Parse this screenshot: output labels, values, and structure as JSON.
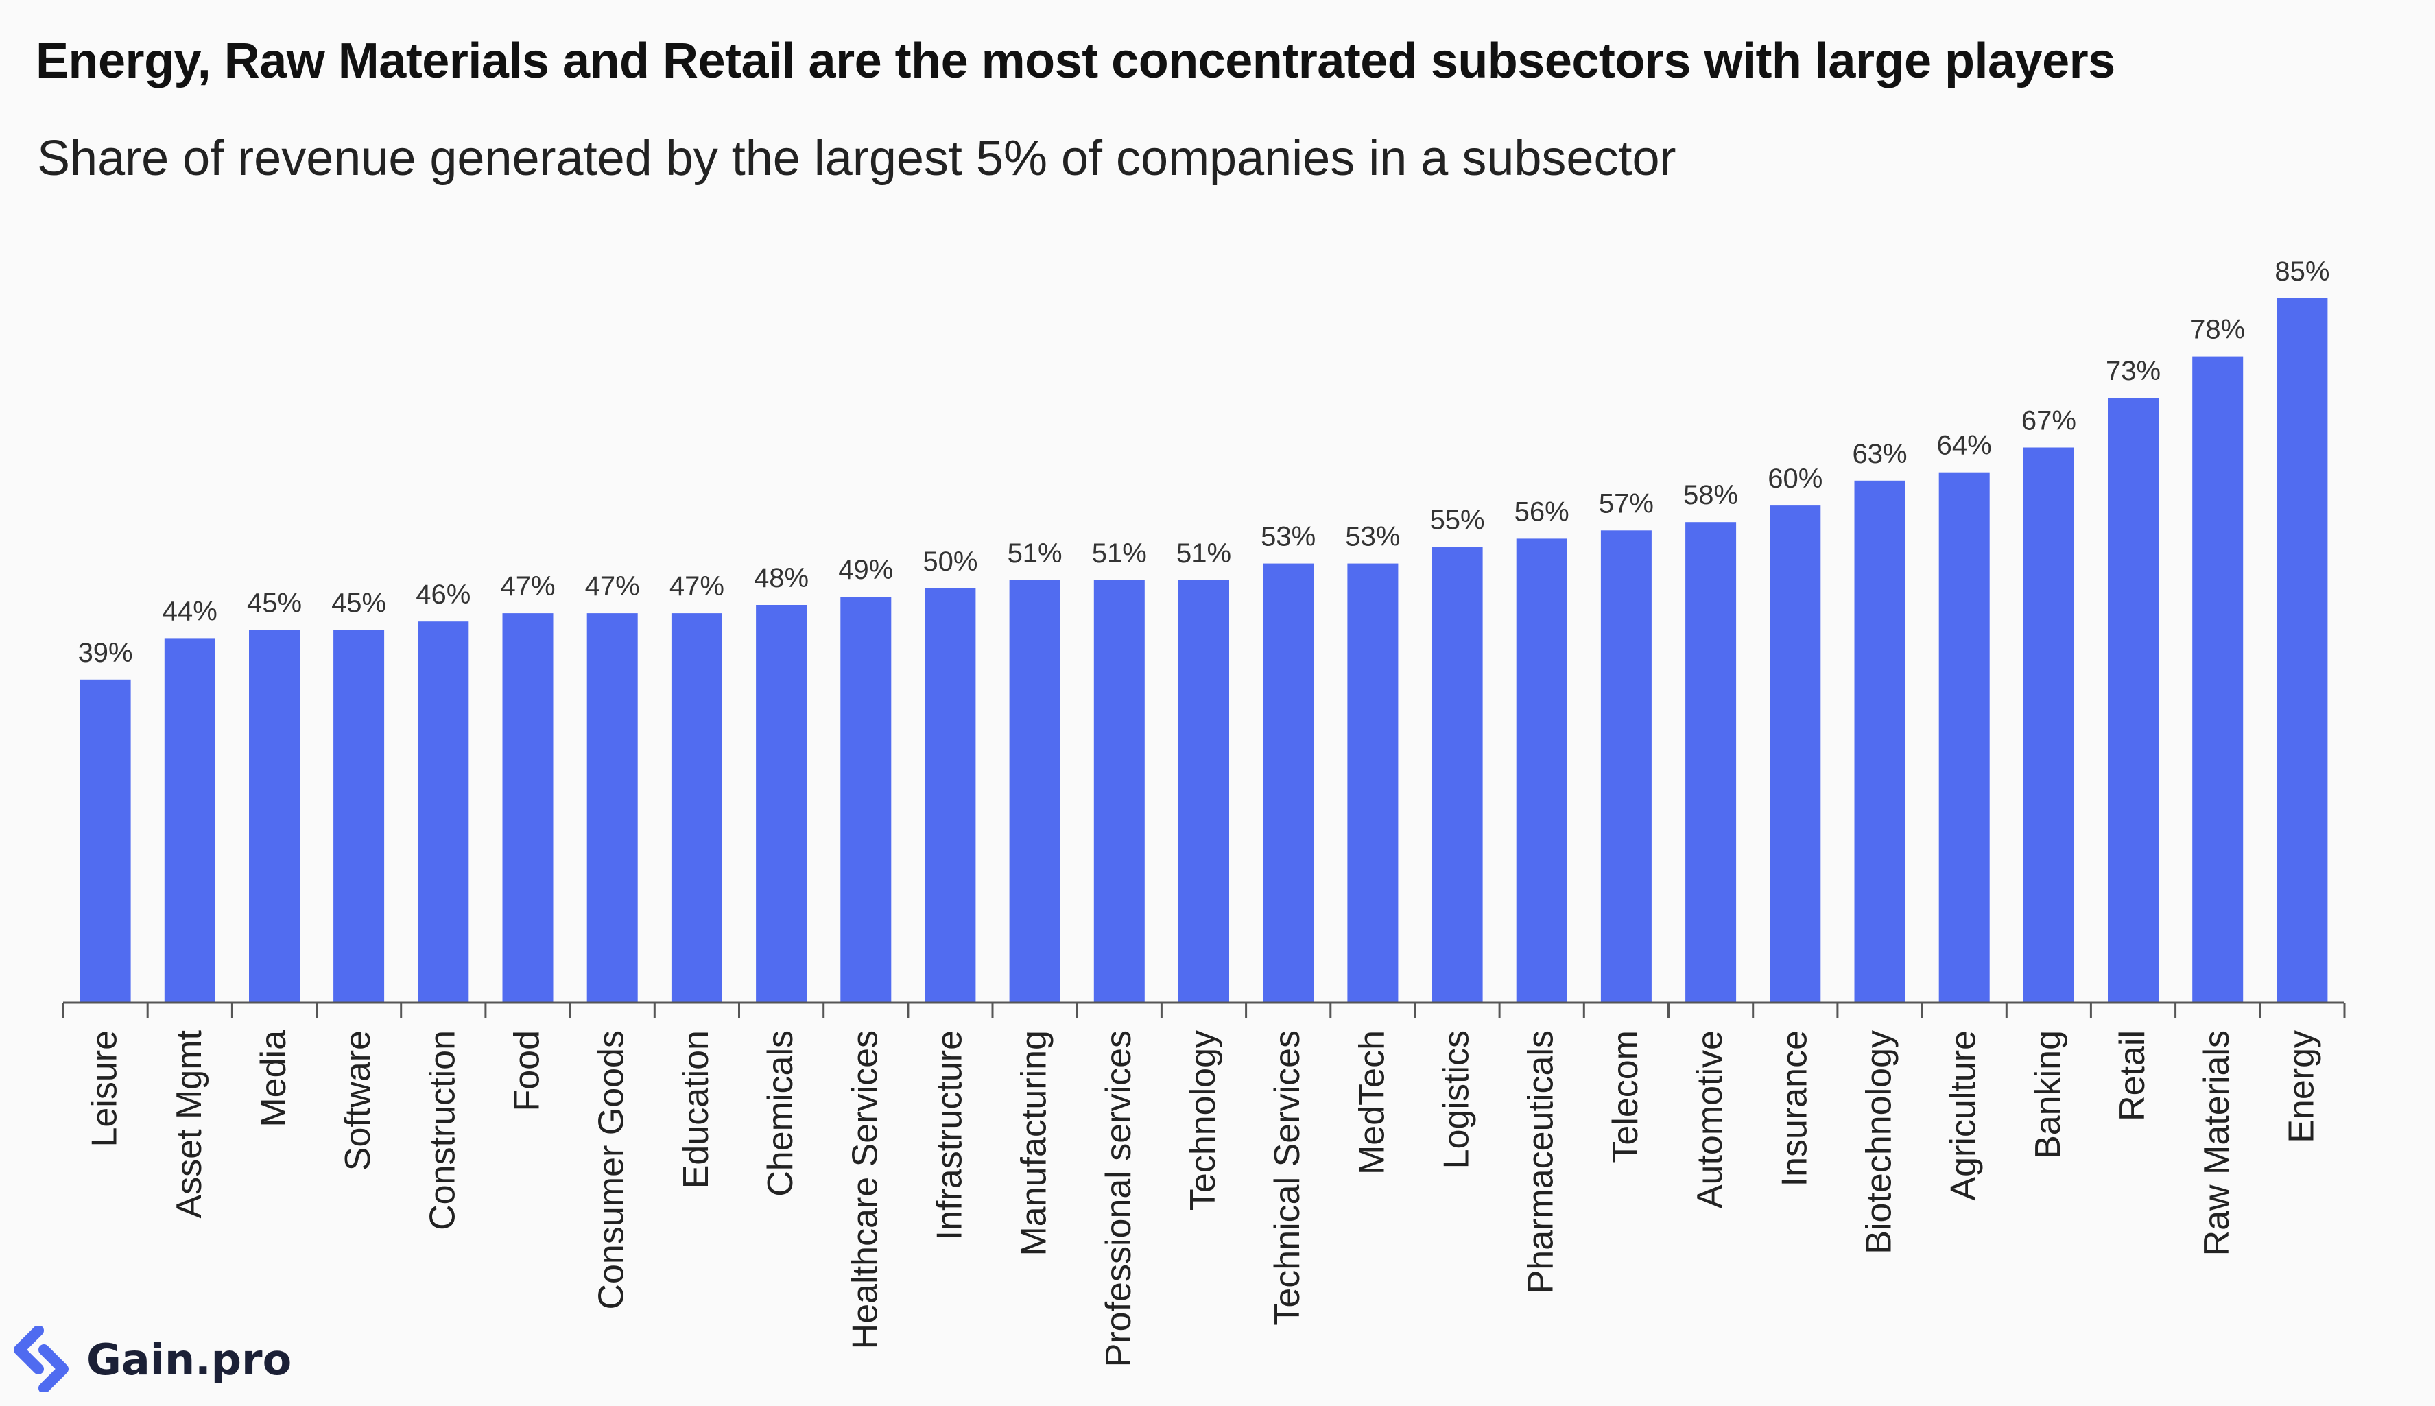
{
  "colors": {
    "bar": "#516CF0",
    "axis": "#555555",
    "label": "#333333",
    "logo_blue": "#4F6BF0",
    "logo_dark": "#1B2036"
  },
  "brand": {
    "name": "Gain.pro"
  },
  "chart_data": {
    "type": "bar",
    "title": "Energy, Raw Materials and Retail are the most concentrated subsectors with large players",
    "subtitle": "Share of revenue generated by the largest 5% of companies in a subsector",
    "xlabel": "",
    "ylabel": "",
    "ylim": [
      0,
      85
    ],
    "grid": false,
    "legend": "none",
    "value_suffix": "%",
    "categories": [
      "Leisure",
      "Asset Mgmt",
      "Media",
      "Software",
      "Construction",
      "Food",
      "Consumer Goods",
      "Education",
      "Chemicals",
      "Healthcare Services",
      "Infrastructure",
      "Manufacturing",
      "Professional services",
      "Technology",
      "Technical Services",
      "MedTech",
      "Logistics",
      "Pharmaceuticals",
      "Telecom",
      "Automotive",
      "Insurance",
      "Biotechnology",
      "Agriculture",
      "Banking",
      "Retail",
      "Raw Materials",
      "Energy"
    ],
    "values": [
      39,
      44,
      45,
      45,
      46,
      47,
      47,
      47,
      48,
      49,
      50,
      51,
      51,
      51,
      53,
      53,
      55,
      56,
      57,
      58,
      60,
      63,
      64,
      67,
      73,
      78,
      85
    ],
    "value_labels": [
      "39%",
      "44%",
      "45%",
      "45%",
      "46%",
      "47%",
      "47%",
      "47%",
      "48%",
      "49%",
      "50%",
      "51%",
      "51%",
      "51%",
      "53%",
      "53%",
      "55%",
      "56%",
      "57%",
      "58%",
      "60%",
      "63%",
      "64%",
      "67%",
      "73%",
      "78%",
      "85%"
    ]
  }
}
